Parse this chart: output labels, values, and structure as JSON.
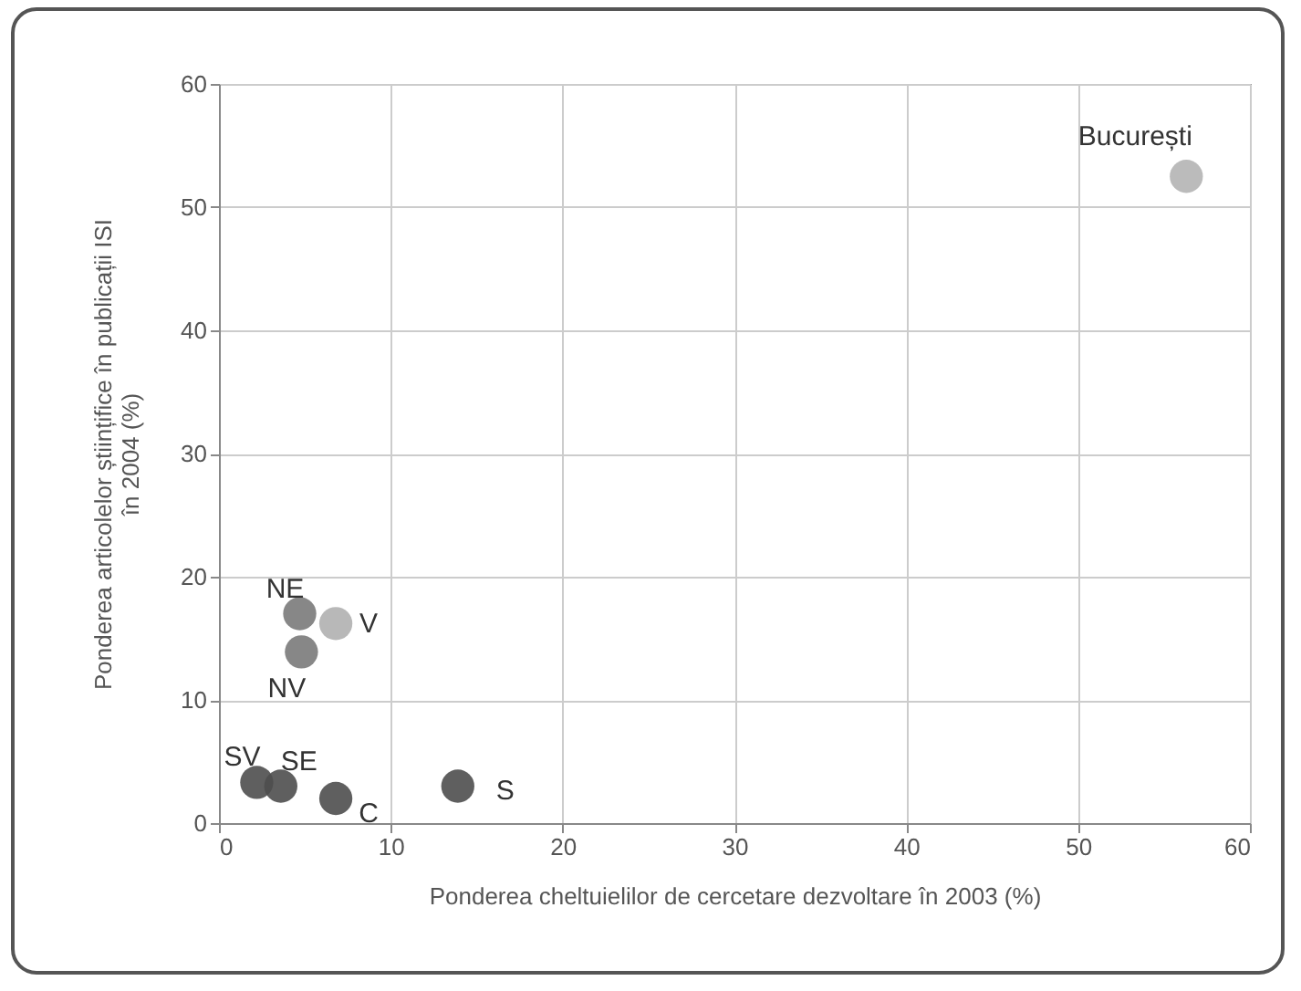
{
  "chart_data": {
    "type": "scatter",
    "xlabel": "Ponderea cheltuielilor de cercetare dezvoltare în 2003 (%)",
    "ylabel": "Ponderea articolelor științifice în publicații ISI în 2004 (%)",
    "x": [
      56.3,
      4.7,
      6.8,
      4.8,
      2.2,
      3.6,
      6.8,
      13.9
    ],
    "values": [
      52.5,
      17,
      16.2,
      13.9,
      3.3,
      3,
      2,
      3
    ],
    "colors": [
      "#b4b4b4",
      "#7a7a7a",
      "#b0b0b0",
      "#7a7a7a",
      "#4e4e4e",
      "#4e4e4e",
      "#4e4e4e",
      "#4e4e4e"
    ],
    "xlim": [
      0,
      60
    ],
    "xticks": [
      0,
      10,
      20,
      30,
      40,
      50,
      60
    ],
    "ylim": [
      0,
      60
    ],
    "yticks": [
      0,
      10,
      20,
      30,
      40,
      50,
      60
    ],
    "grid": true,
    "marker": "circle",
    "annotations": [
      {
        "text": "București",
        "x": 56.3,
        "y": 52.5
      },
      {
        "text": "NE",
        "x": 4.7,
        "y": 17
      },
      {
        "text": "V",
        "x": 6.8,
        "y": 16.2
      },
      {
        "text": "NV",
        "x": 4.8,
        "y": 13.9
      },
      {
        "text": "SV",
        "x": 2.2,
        "y": 3.3
      },
      {
        "text": "SE",
        "x": 3.6,
        "y": 3
      },
      {
        "text": "C",
        "x": 6.8,
        "y": 2
      },
      {
        "text": "S",
        "x": 13.9,
        "y": 3
      }
    ]
  }
}
